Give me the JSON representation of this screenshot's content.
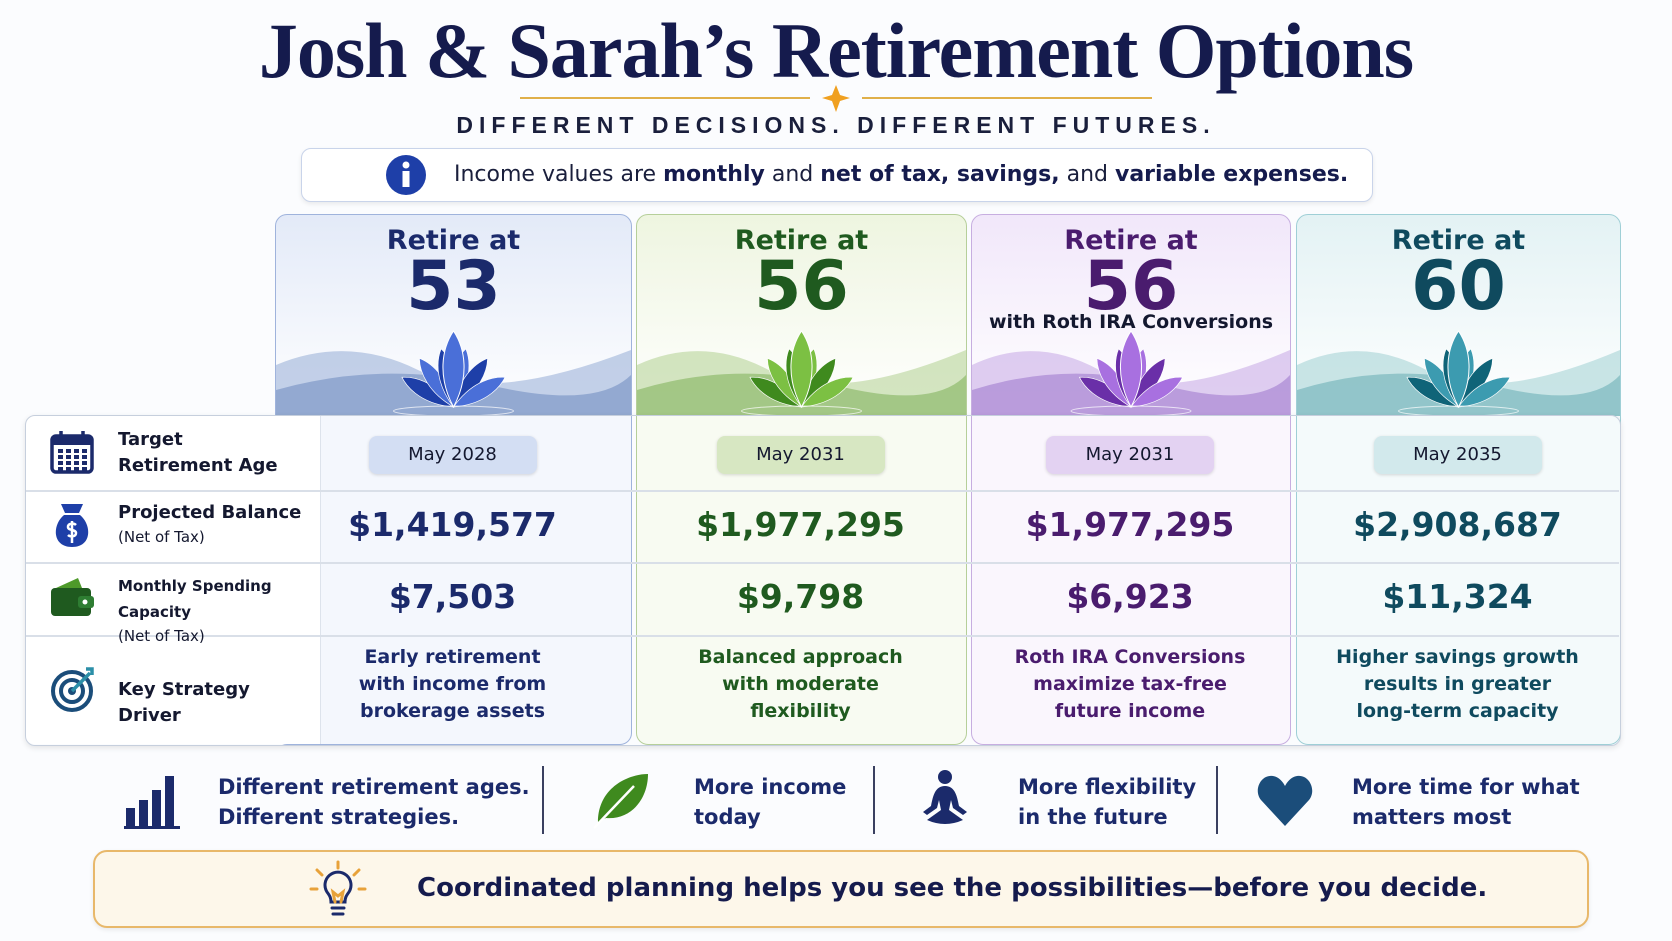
{
  "header": {
    "title": "Josh & Sarah’s Retirement Options",
    "tagline": "DIFFERENT DECISIONS. DIFFERENT FUTURES."
  },
  "notice": {
    "runs": [
      {
        "text": "Income values are ",
        "bold": false
      },
      {
        "text": "monthly",
        "bold": true
      },
      {
        "text": " and ",
        "bold": false
      },
      {
        "text": "net of tax, savings,",
        "bold": true
      },
      {
        "text": " and ",
        "bold": false
      },
      {
        "text": "variable expenses.",
        "bold": true
      }
    ]
  },
  "rows": [
    {
      "label": [
        "Target",
        "Retirement Age"
      ]
    },
    {
      "label": [
        "Projected Balance"
      ],
      "note": "(Net of Tax)"
    },
    {
      "label": [
        "Monthly Spending Capacity"
      ],
      "note": "(Net of Tax)"
    },
    {
      "label": [
        "Key Strategy Driver"
      ]
    }
  ],
  "options": [
    {
      "heading": "Retire at",
      "age": "53",
      "date": "May 2028",
      "balance": "$1,419,577",
      "spending": "$7,503",
      "driver": [
        "Early retirement",
        "with income from",
        "brokerage assets"
      ]
    },
    {
      "heading": "Retire at",
      "age": "56",
      "date": "May 2031",
      "balance": "$1,977,295",
      "spending": "$9,798",
      "driver": [
        "Balanced approach",
        "with moderate",
        "flexibility"
      ]
    },
    {
      "heading": "Retire at",
      "age": "56",
      "note": "with Roth IRA Conversions",
      "date": "May 2031",
      "balance": "$1,977,295",
      "spending": "$6,923",
      "driver": [
        "Roth IRA Conversions",
        "maximize tax-free",
        "future income"
      ]
    },
    {
      "heading": "Retire at",
      "age": "60",
      "date": "May 2035",
      "balance": "$2,908,687",
      "spending": "$11,324",
      "driver": [
        "Higher savings growth",
        "results in greater",
        "long-term capacity"
      ]
    }
  ],
  "features": [
    {
      "lines": [
        "Different retirement ages.",
        "Different strategies."
      ]
    },
    {
      "lines": [
        "More income",
        "today"
      ]
    },
    {
      "lines": [
        "More flexibility",
        "in the future"
      ]
    },
    {
      "lines": [
        "More time for what",
        "matters most"
      ]
    }
  ],
  "footer": {
    "message": "Coordinated planning helps you see the possibilities—before you decide."
  }
}
